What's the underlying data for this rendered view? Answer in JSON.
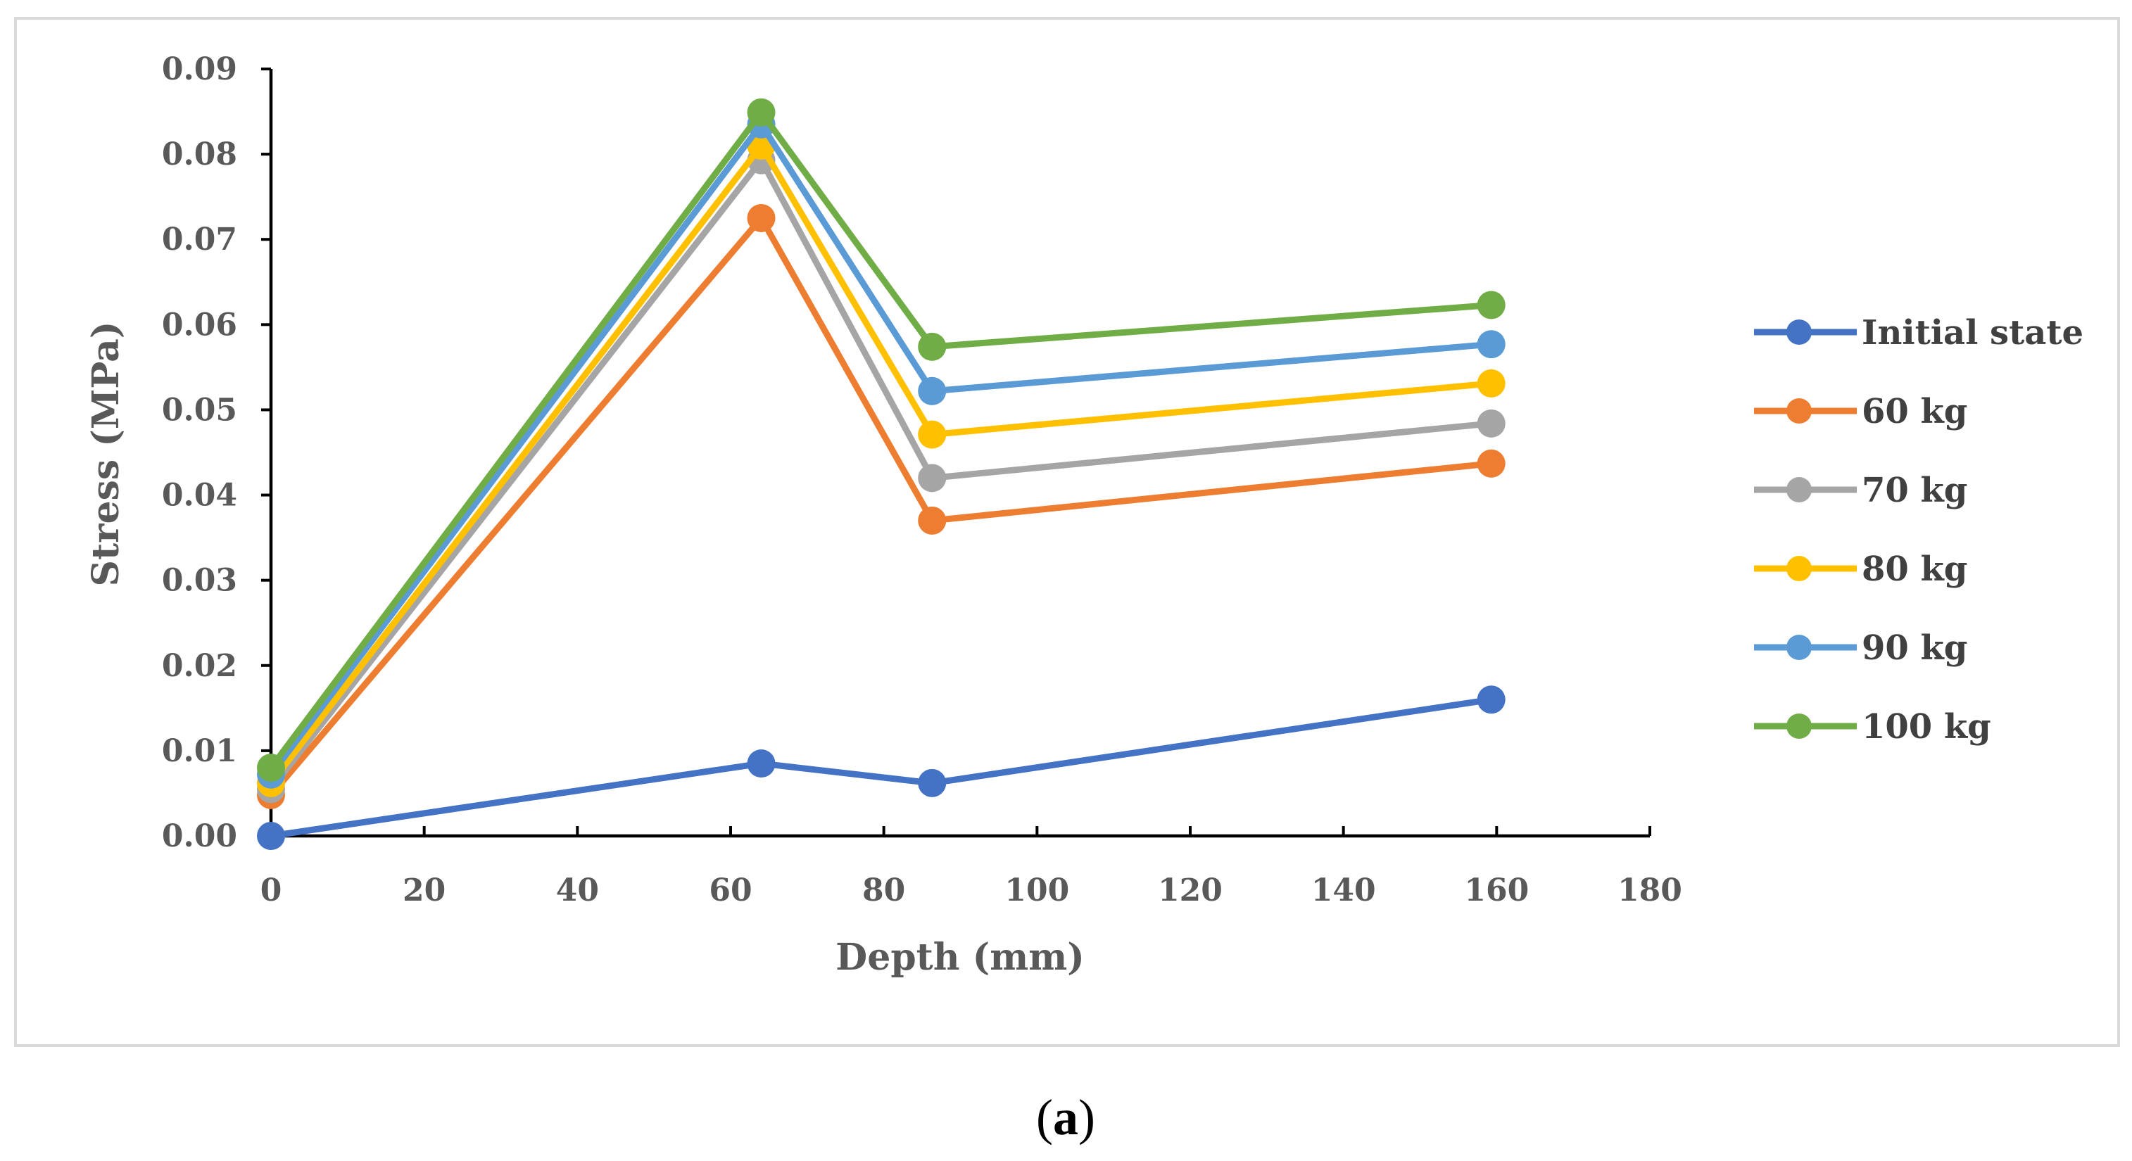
{
  "figure": {
    "caption_open": "(",
    "caption_letter": "a",
    "caption_close": ")"
  },
  "chart_data": {
    "type": "line",
    "title": "",
    "xlabel": "Depth (mm)",
    "ylabel": "Stress (MPa)",
    "xlim": [
      0,
      180
    ],
    "ylim": [
      0,
      0.09
    ],
    "xticks": [
      0,
      20,
      40,
      60,
      80,
      100,
      120,
      140,
      160,
      180
    ],
    "xtick_labels": [
      "0",
      "20",
      "40",
      "60",
      "80",
      "100",
      "120",
      "140",
      "160",
      "180"
    ],
    "yticks": [
      0,
      0.01,
      0.02,
      0.03,
      0.04,
      0.05,
      0.06,
      0.07,
      0.08,
      0.09
    ],
    "ytick_labels": [
      "0.00",
      "0.01",
      "0.02",
      "0.03",
      "0.04",
      "0.05",
      "0.06",
      "0.07",
      "0.08",
      "0.09"
    ],
    "legend_position": "right",
    "grid": false,
    "x": [
      0,
      64,
      86.3,
      159.3
    ],
    "series": [
      {
        "name": "Initial state",
        "color": "#4472C4",
        "values": [
          0.0,
          0.0085,
          0.0062,
          0.016
        ]
      },
      {
        "name": "60 kg",
        "color": "#ED7D31",
        "values": [
          0.0048,
          0.0725,
          0.037,
          0.0437
        ]
      },
      {
        "name": "70 kg",
        "color": "#A5A5A5",
        "values": [
          0.0055,
          0.0793,
          0.042,
          0.0484
        ]
      },
      {
        "name": "80 kg",
        "color": "#FFC000",
        "values": [
          0.0062,
          0.081,
          0.0471,
          0.0531
        ]
      },
      {
        "name": "90 kg",
        "color": "#5B9BD5",
        "values": [
          0.0072,
          0.0835,
          0.0522,
          0.0577
        ]
      },
      {
        "name": "100 kg",
        "color": "#70AD47",
        "values": [
          0.008,
          0.0849,
          0.0574,
          0.0623
        ]
      }
    ]
  },
  "frame_color": "#D9D9D9"
}
